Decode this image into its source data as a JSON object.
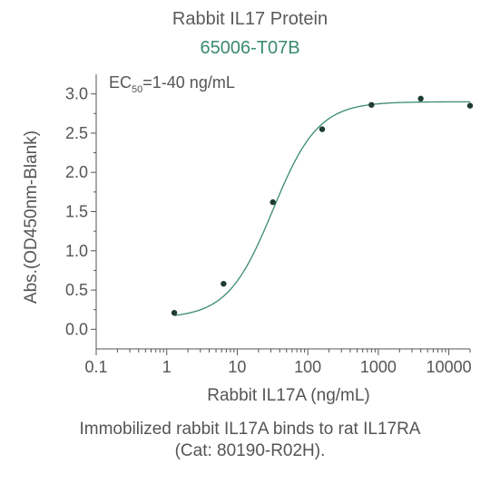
{
  "colors": {
    "accent": "#3a8a6e",
    "curve": "#3a8a6e",
    "point": "#1e3d30",
    "axis": "#555555",
    "text": "#555555"
  },
  "header": {
    "title": "Rabbit IL17 Protein",
    "subtitle": "65006-T07B"
  },
  "caption": {
    "line1": "Immobilized rabbit IL17A binds to rat IL17RA",
    "line2": "(Cat: 80190-R02H)."
  },
  "chart_data": {
    "type": "scatter",
    "xlabel": "Rabbit IL17A (ng/mL)",
    "ylabel": "Abs.(OD450nm-Blank)",
    "xscale": "log",
    "xlim": [
      0.1,
      20000
    ],
    "ylim": [
      -0.25,
      3.25
    ],
    "xticks": [
      0.1,
      1,
      10,
      100,
      1000,
      10000
    ],
    "xtick_labels": [
      "0.1",
      "1",
      "10",
      "100",
      "1000",
      "10000"
    ],
    "yticks": [
      0.0,
      0.5,
      1.0,
      1.5,
      2.0,
      2.5,
      3.0
    ],
    "ytick_labels": [
      "0.0",
      "0.5",
      "1.0",
      "1.5",
      "2.0",
      "2.5",
      "3.0"
    ],
    "annotation": {
      "prefix": "EC",
      "subscript": "50",
      "suffix": "=1-40 ng/mL"
    },
    "grid": false,
    "series": [
      {
        "x": [
          1.28,
          6.4,
          32,
          160,
          800,
          4000,
          20000
        ],
        "y": [
          0.21,
          0.58,
          1.62,
          2.55,
          2.86,
          2.94,
          2.85
        ],
        "fit": {
          "bottom": 0.14,
          "top": 2.9,
          "ec50": 32,
          "hill": 1.35
        }
      }
    ]
  }
}
